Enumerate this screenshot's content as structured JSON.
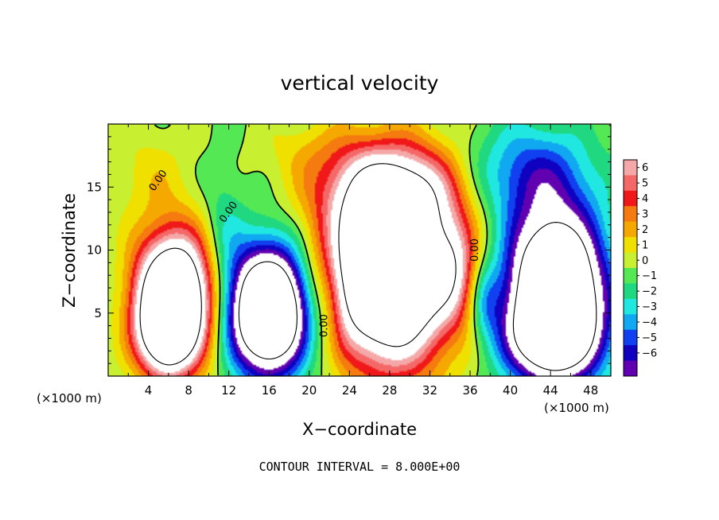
{
  "chart_data": {
    "type": "heatmap",
    "title": "vertical velocity",
    "xlabel": "X−coordinate",
    "ylabel": "Z−coordinate",
    "x_unit_left": "(×1000 m)",
    "x_unit_right": "(×1000 m)",
    "footer": "CONTOUR INTERVAL = 8.000E+00",
    "xlim": [
      0,
      50
    ],
    "ylim": [
      0,
      20
    ],
    "x_ticks": [
      4,
      8,
      12,
      16,
      20,
      24,
      28,
      32,
      36,
      40,
      44,
      48
    ],
    "y_ticks": [
      5,
      10,
      15
    ],
    "colorbar": {
      "min": -6,
      "max": 6,
      "labels": [
        "6",
        "5",
        "4",
        "3",
        "2",
        "1",
        "0",
        "−1",
        "−2",
        "−3",
        "−4",
        "−5",
        "−6"
      ],
      "colors": [
        "#f4a8a8",
        "#f56868",
        "#f01818",
        "#f57a10",
        "#f5a800",
        "#f0e000",
        "#c8f030",
        "#55e855",
        "#20d880",
        "#20e8e0",
        "#10a8f0",
        "#1040f0",
        "#1000c0",
        "#6000b0"
      ]
    },
    "contour_labels": [
      "0.00",
      "0.00",
      "0.00",
      "0.00"
    ],
    "cells": [
      {
        "x": 6.5,
        "z": 6.0,
        "sx": 3.6,
        "sz": 5.0,
        "amp": 16
      },
      {
        "x": 5.5,
        "z": 3.2,
        "sx": 2.5,
        "sz": 3.0,
        "amp": 5
      },
      {
        "x": 28.0,
        "z": 8.5,
        "sx": 6.0,
        "sz": 7.0,
        "amp": 17
      },
      {
        "x": 28.0,
        "z": 15.0,
        "sx": 7.0,
        "sz": 3.5,
        "amp": 5
      },
      {
        "x": 34.5,
        "z": 8.5,
        "sx": 2.0,
        "sz": 4.0,
        "amp": 3
      },
      {
        "x": 16.0,
        "z": 5.2,
        "sx": 3.8,
        "sz": 4.8,
        "amp": -16
      },
      {
        "x": 44.5,
        "z": 6.5,
        "sx": 4.6,
        "sz": 6.2,
        "amp": -16
      },
      {
        "x": 42.0,
        "z": 16.0,
        "sx": 6.0,
        "sz": 4.0,
        "amp": -4
      },
      {
        "x": 44.0,
        "z": 3.0,
        "sx": 5.0,
        "sz": 3.0,
        "amp": -4
      },
      {
        "x": 37.5,
        "z": 6.0,
        "sx": 1.5,
        "sz": 3.0,
        "amp": -2.5
      },
      {
        "x": 11.5,
        "z": 12.0,
        "sx": 2.0,
        "sz": 5.0,
        "amp": -1.5
      },
      {
        "x": 22.0,
        "z": 6.0,
        "sx": 1.5,
        "sz": 6.0,
        "amp": -1.2
      },
      {
        "x": 4.0,
        "z": 16.0,
        "sx": 4.0,
        "sz": 3.5,
        "amp": 1.2
      },
      {
        "x": 20.0,
        "z": 18.0,
        "sx": 5.0,
        "sz": 2.5,
        "amp": 1.0
      }
    ]
  }
}
